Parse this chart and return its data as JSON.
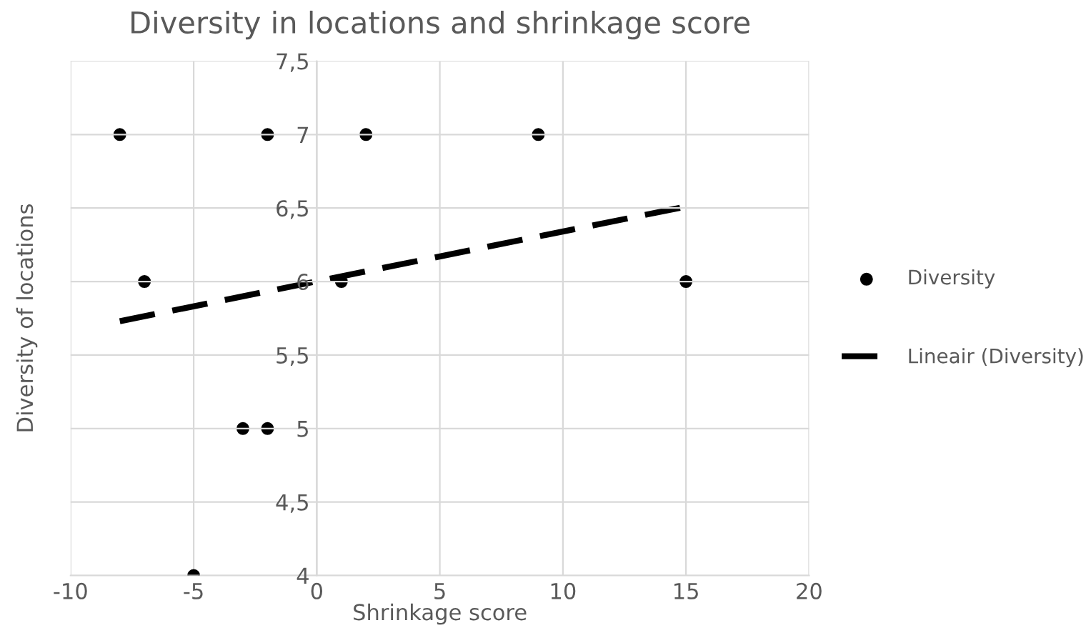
{
  "chart_data": {
    "type": "scatter",
    "title": "Diversity in locations and shrinkage score",
    "xlabel": "Shrinkage score",
    "ylabel": "Diversity of locations",
    "x": [
      -8,
      -7,
      -5,
      -3,
      -2,
      -2,
      1,
      2,
      9,
      15
    ],
    "series": [
      {
        "name": "Diversity",
        "color": "#000000",
        "marker": "circle",
        "values": [
          7,
          6,
          4,
          5,
          5,
          7,
          6,
          7,
          7,
          6
        ]
      },
      {
        "name": "Lineair (Diversity)",
        "color": "#000000",
        "type": "line",
        "line_style": "dashed",
        "marker": "none",
        "x": [
          -8,
          15
        ],
        "values": [
          5.73,
          6.51
        ]
      }
    ],
    "xlim": [
      -10,
      20
    ],
    "xticks": [
      -10,
      -5,
      0,
      5,
      10,
      15,
      20
    ],
    "ylim": [
      4,
      7.5
    ],
    "yticks": [
      4,
      {
        "value": 4.5,
        "label": "4,5"
      },
      5,
      {
        "value": 5.5,
        "label": "5,5"
      },
      6,
      {
        "value": 6.5,
        "label": "6,5"
      },
      7,
      {
        "value": 7.5,
        "label": "7,5"
      }
    ],
    "grid": true,
    "legend": "right"
  }
}
